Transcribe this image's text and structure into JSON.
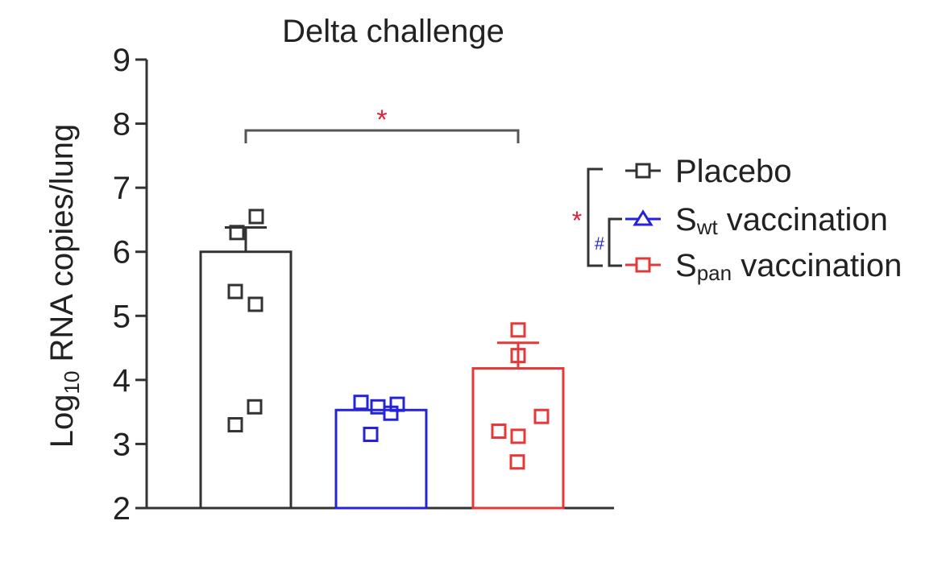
{
  "chart_data": {
    "type": "bar",
    "title": "Delta challenge",
    "ylabel_main": "Log",
    "ylabel_sub": "10",
    "ylabel_rest": " RNA copies/lung",
    "ylim": [
      2,
      9
    ],
    "yticks": [
      "2",
      "3",
      "4",
      "5",
      "6",
      "7",
      "8",
      "9"
    ],
    "categories": [
      "Placebo",
      "Swt vaccination",
      "Span vaccination"
    ],
    "series": [
      {
        "name": "Placebo",
        "legend_main": "S",
        "legend_main_full": "Placebo",
        "color": "#333333",
        "value": 6.0,
        "error": 0.38,
        "points": [
          6.55,
          6.3,
          5.38,
          5.18,
          3.58,
          3.3
        ]
      },
      {
        "name": "Swt vaccination",
        "legend_main": "S",
        "legend_sub": "wt",
        "legend_rest": " vaccination",
        "color": "#2424d6",
        "value": 3.53,
        "error": 0.0,
        "points": [
          3.65,
          3.58,
          3.62,
          3.48,
          3.15
        ]
      },
      {
        "name": "Span vaccination",
        "legend_main": "S",
        "legend_sub": "pan",
        "legend_rest": " vaccination",
        "color": "#e23a3a",
        "value": 4.18,
        "error": 0.4,
        "points": [
          4.78,
          4.38,
          3.43,
          3.2,
          3.12,
          2.72
        ]
      }
    ],
    "annotations": {
      "bracket_star": "*",
      "legend_star": "*",
      "legend_hash": "#"
    },
    "colors": {
      "axis": "#333333",
      "star": "#e21f3a",
      "hash": "#2424d6"
    }
  }
}
